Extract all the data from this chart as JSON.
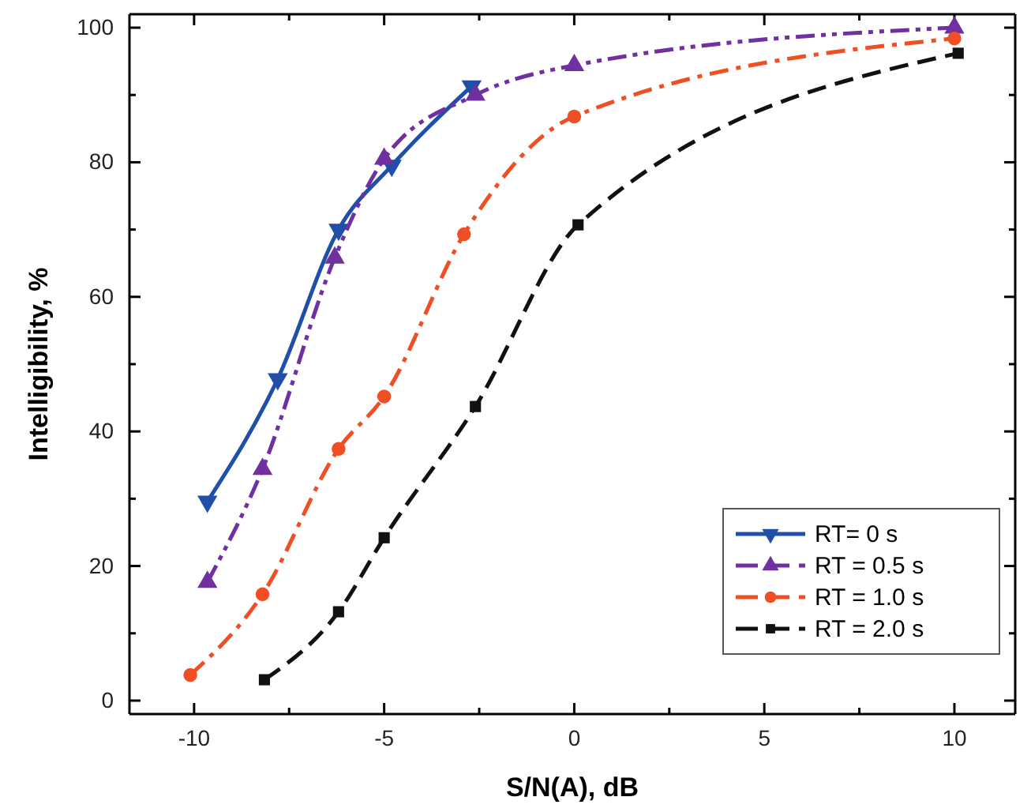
{
  "chart_data": {
    "type": "line",
    "xlabel": "S/N(A), dB",
    "ylabel": "Intelligibility, %",
    "xlim": [
      -11.7,
      11.6
    ],
    "ylim": [
      -2,
      102
    ],
    "xticks": [
      -10,
      {
        "value": -7.5,
        "label": null
      },
      -5,
      {
        "value": -2.5,
        "label": null
      },
      0,
      {
        "value": 2.5,
        "label": null
      },
      5,
      {
        "value": 7.5,
        "label": null
      },
      10
    ],
    "yticks": [
      0,
      {
        "value": 10,
        "label": null
      },
      20,
      {
        "value": 30,
        "label": null
      },
      40,
      {
        "value": 50,
        "label": null
      },
      60,
      {
        "value": 70,
        "label": null
      },
      80,
      {
        "value": 90,
        "label": null
      },
      100
    ],
    "grid": false,
    "legend": "bottom right",
    "series": [
      {
        "name": "RT= 0 s",
        "color": "#1f4fa8",
        "marker": "triangle-down",
        "line_style": "solid",
        "x": [
          -9.65,
          -7.8,
          -6.2,
          -4.8,
          -2.7
        ],
        "values": [
          29.6,
          47.8,
          70,
          79.5,
          91.3
        ]
      },
      {
        "name": "RT = 0.5 s",
        "color": "#7030a0",
        "marker": "triangle",
        "line_style": "dashdotdot",
        "x": [
          -9.65,
          -8.2,
          -6.3,
          -5,
          -2.6,
          0,
          10
        ],
        "values": [
          17.6,
          34.4,
          65.8,
          80.5,
          90,
          94.4,
          100
        ]
      },
      {
        "name": "RT = 1.0 s",
        "color": "#f04e23",
        "marker": "circle",
        "line_style": "dashdot",
        "x": [
          -10.1,
          -8.2,
          -6.2,
          -5,
          -2.9,
          0,
          10
        ],
        "values": [
          3.8,
          15.8,
          37.4,
          45.2,
          69.3,
          86.8,
          98.4
        ]
      },
      {
        "name": "RT = 2.0 s",
        "color": "#111111",
        "marker": "square",
        "line_style": "dashed",
        "x": [
          -8.15,
          -6.2,
          -5,
          -2.6,
          0.1,
          10.1
        ],
        "values": [
          3.1,
          13.2,
          24.2,
          43.7,
          70.7,
          96.2
        ]
      }
    ]
  }
}
